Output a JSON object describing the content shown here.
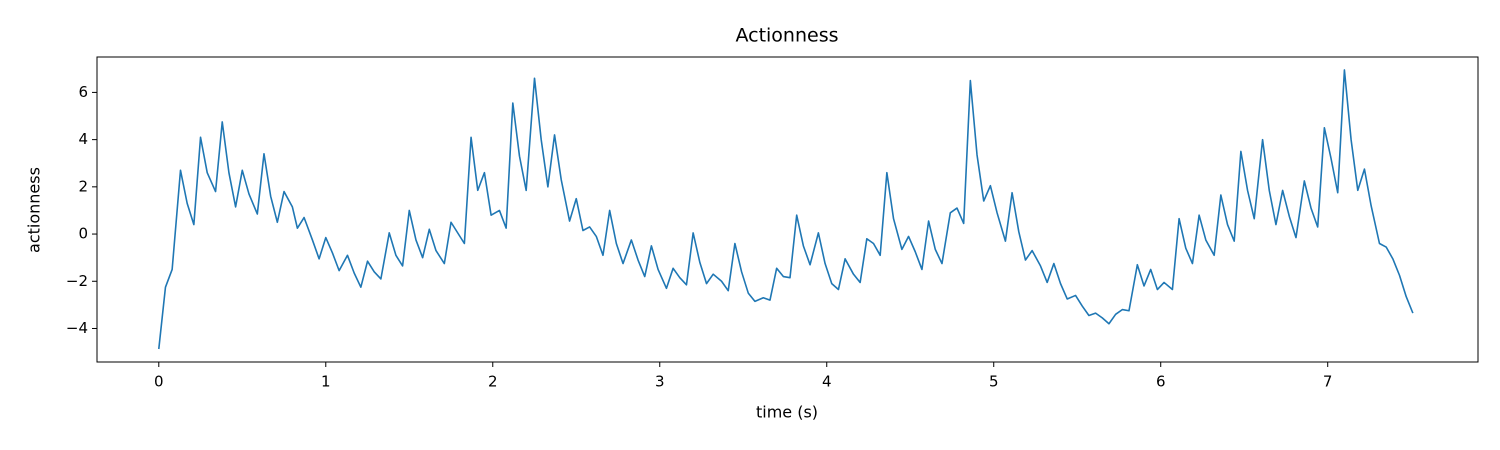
{
  "chart_data": {
    "type": "line",
    "title": "Actionness",
    "xlabel": "time (s)",
    "ylabel": "actionness",
    "x": [
      0,
      0.04,
      0.08,
      0.13,
      0.17,
      0.21,
      0.25,
      0.29,
      0.34,
      0.38,
      0.42,
      0.46,
      0.5,
      0.54,
      0.59,
      0.63,
      0.67,
      0.71,
      0.75,
      0.8,
      0.83,
      0.87,
      0.92,
      0.96,
      1.0,
      1.04,
      1.08,
      1.13,
      1.17,
      1.21,
      1.25,
      1.29,
      1.33,
      1.38,
      1.42,
      1.46,
      1.5,
      1.54,
      1.58,
      1.62,
      1.66,
      1.71,
      1.75,
      1.79,
      1.83,
      1.87,
      1.91,
      1.95,
      1.99,
      2.04,
      2.08,
      2.12,
      2.16,
      2.2,
      2.25,
      2.29,
      2.33,
      2.37,
      2.41,
      2.46,
      2.5,
      2.54,
      2.58,
      2.62,
      2.66,
      2.7,
      2.74,
      2.78,
      2.83,
      2.87,
      2.91,
      2.95,
      2.99,
      3.04,
      3.08,
      3.12,
      3.16,
      3.2,
      3.24,
      3.28,
      3.32,
      3.37,
      3.41,
      3.45,
      3.49,
      3.53,
      3.57,
      3.62,
      3.66,
      3.7,
      3.74,
      3.78,
      3.82,
      3.86,
      3.9,
      3.95,
      3.99,
      4.03,
      4.07,
      4.11,
      4.16,
      4.2,
      4.24,
      4.28,
      4.32,
      4.36,
      4.4,
      4.45,
      4.49,
      4.53,
      4.57,
      4.61,
      4.65,
      4.69,
      4.74,
      4.78,
      4.82,
      4.86,
      4.9,
      4.94,
      4.98,
      5.02,
      5.07,
      5.11,
      5.15,
      5.19,
      5.23,
      5.28,
      5.32,
      5.36,
      5.4,
      5.44,
      5.49,
      5.53,
      5.57,
      5.61,
      5.65,
      5.69,
      5.73,
      5.77,
      5.81,
      5.86,
      5.9,
      5.94,
      5.98,
      6.02,
      6.07,
      6.11,
      6.15,
      6.19,
      6.23,
      6.27,
      6.32,
      6.36,
      6.4,
      6.44,
      6.48,
      6.52,
      6.56,
      6.61,
      6.65,
      6.69,
      6.73,
      6.77,
      6.81,
      6.86,
      6.9,
      6.94,
      6.98,
      7.02,
      7.06,
      7.1,
      7.14,
      7.18,
      7.22,
      7.26,
      7.31,
      7.35,
      7.39,
      7.43,
      7.47,
      7.51
    ],
    "series": [
      {
        "color": "#1f77b4",
        "values": [
          -4.87,
          -2.25,
          -1.5,
          2.7,
          1.3,
          0.4,
          4.1,
          2.6,
          1.8,
          4.75,
          2.6,
          1.15,
          2.7,
          1.7,
          0.85,
          3.4,
          1.6,
          0.5,
          1.8,
          1.15,
          0.25,
          0.7,
          -0.25,
          -1.05,
          -0.15,
          -0.8,
          -1.55,
          -0.9,
          -1.65,
          -2.25,
          -1.15,
          -1.6,
          -1.9,
          0.05,
          -0.9,
          -1.35,
          1.0,
          -0.25,
          -1.0,
          0.2,
          -0.7,
          -1.25,
          0.5,
          0.05,
          -0.4,
          4.1,
          1.85,
          2.6,
          0.8,
          1.0,
          0.25,
          5.55,
          3.3,
          1.85,
          6.6,
          4.0,
          2.0,
          4.2,
          2.3,
          0.55,
          1.5,
          0.15,
          0.3,
          -0.1,
          -0.9,
          1.0,
          -0.4,
          -1.25,
          -0.25,
          -1.1,
          -1.8,
          -0.5,
          -1.5,
          -2.3,
          -1.45,
          -1.85,
          -2.15,
          0.05,
          -1.2,
          -2.1,
          -1.7,
          -2.0,
          -2.4,
          -0.4,
          -1.6,
          -2.5,
          -2.85,
          -2.7,
          -2.8,
          -1.45,
          -1.8,
          -1.85,
          0.8,
          -0.5,
          -1.3,
          0.05,
          -1.25,
          -2.1,
          -2.35,
          -1.05,
          -1.7,
          -2.05,
          -0.2,
          -0.4,
          -0.9,
          2.6,
          0.65,
          -0.65,
          -0.1,
          -0.75,
          -1.5,
          0.55,
          -0.65,
          -1.25,
          0.9,
          1.1,
          0.45,
          6.5,
          3.35,
          1.4,
          2.05,
          0.9,
          -0.3,
          1.75,
          0.1,
          -1.1,
          -0.7,
          -1.35,
          -2.05,
          -1.25,
          -2.1,
          -2.75,
          -2.6,
          -3.05,
          -3.45,
          -3.35,
          -3.55,
          -3.8,
          -3.4,
          -3.2,
          -3.25,
          -1.3,
          -2.2,
          -1.5,
          -2.35,
          -2.05,
          -2.35,
          0.65,
          -0.6,
          -1.25,
          0.8,
          -0.25,
          -0.9,
          1.65,
          0.4,
          -0.3,
          3.5,
          1.85,
          0.65,
          4.0,
          1.85,
          0.4,
          1.85,
          0.75,
          -0.15,
          2.25,
          1.1,
          0.3,
          4.5,
          3.2,
          1.75,
          6.95,
          4.0,
          1.85,
          2.75,
          1.2,
          -0.4,
          -0.55,
          -1.05,
          -1.75,
          -2.65,
          -3.35
        ]
      }
    ],
    "xlim": [
      -0.37,
      7.9
    ],
    "ylim": [
      -5.42,
      7.5
    ],
    "xticks": [
      0,
      1,
      2,
      3,
      4,
      5,
      6,
      7
    ],
    "yticks": [
      {
        "value": -4,
        "label": "−4"
      },
      {
        "value": -2,
        "label": "−2"
      },
      0,
      2,
      4,
      6
    ]
  }
}
